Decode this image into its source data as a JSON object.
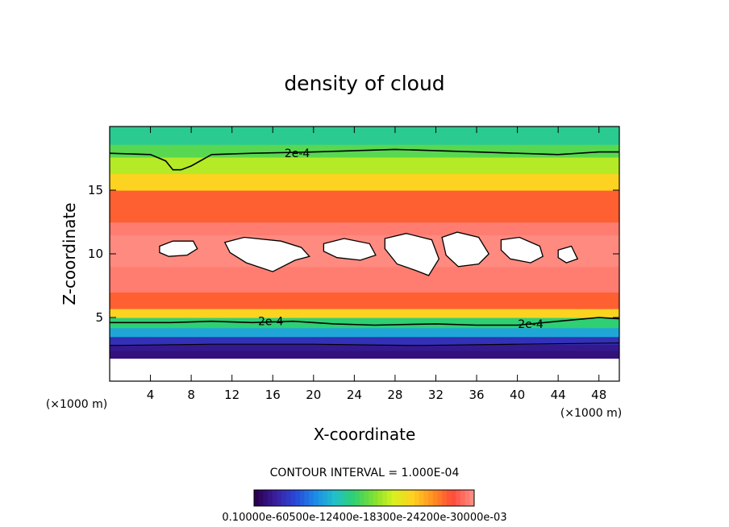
{
  "chart_data": {
    "type": "heatmap",
    "title": "density of cloud",
    "xlabel": "X-coordinate",
    "ylabel": "Z-coordinate",
    "x_unit_left": "(×1000 m)",
    "x_unit_right": "(×1000 m)",
    "xlim": [
      0,
      50
    ],
    "ylim": [
      0,
      20
    ],
    "xticks": [
      4,
      8,
      12,
      16,
      20,
      24,
      28,
      32,
      36,
      40,
      44,
      48
    ],
    "yticks": [
      5,
      10,
      15
    ],
    "contour_interval_text": "CONTOUR INTERVAL = 1.000E-04",
    "contour_label": "2e-4",
    "colorbar_text": "0.10000e-60500e-12400e-18300e-24200e-30000e-03",
    "colorbar_colors": [
      "#2a0050",
      "#3a1fa0",
      "#2848d8",
      "#1e8ae8",
      "#20c0c8",
      "#30d070",
      "#80e030",
      "#d8f020",
      "#ffd020",
      "#ff9020",
      "#ff4a3a",
      "#ff8a80"
    ],
    "layers": [
      {
        "zmin": 0.0,
        "zmax": 1.8,
        "level": "none"
      },
      {
        "zmin": 1.8,
        "zmax": 2.4,
        "level": 0.05
      },
      {
        "zmin": 2.4,
        "zmax": 2.9,
        "level": 0.07
      },
      {
        "zmin": 2.9,
        "zmax": 3.5,
        "level": 0.13
      },
      {
        "zmin": 3.5,
        "zmax": 4.2,
        "level": 0.32
      },
      {
        "zmin": 4.2,
        "zmax": 5.0,
        "level": 0.45
      },
      {
        "zmin": 5.0,
        "zmax": 5.7,
        "level": 0.72
      },
      {
        "zmin": 5.7,
        "zmax": 7.0,
        "level": 0.88
      },
      {
        "zmin": 7.0,
        "zmax": 9.0,
        "level": 0.98
      },
      {
        "zmin": 9.0,
        "zmax": 11.5,
        "level": 1.0
      },
      {
        "zmin": 11.5,
        "zmax": 12.5,
        "level": 0.98
      },
      {
        "zmin": 12.5,
        "zmax": 15.0,
        "level": 0.88
      },
      {
        "zmin": 15.0,
        "zmax": 16.3,
        "level": 0.72
      },
      {
        "zmin": 16.3,
        "zmax": 17.6,
        "level": 0.6
      },
      {
        "zmin": 17.6,
        "zmax": 18.6,
        "level": 0.5
      },
      {
        "zmin": 18.6,
        "zmax": 20.0,
        "level": 0.42
      }
    ],
    "contour_upper": [
      [
        0,
        17.9
      ],
      [
        4,
        17.8
      ],
      [
        5.5,
        17.3
      ],
      [
        6.2,
        16.6
      ],
      [
        7,
        16.6
      ],
      [
        8,
        16.9
      ],
      [
        10,
        17.8
      ],
      [
        14,
        17.9
      ],
      [
        20,
        18.0
      ],
      [
        28,
        18.2
      ],
      [
        36,
        18.0
      ],
      [
        40,
        17.9
      ],
      [
        44,
        17.8
      ],
      [
        48,
        18.0
      ],
      [
        50,
        18.0
      ]
    ],
    "contour_lower": [
      [
        0,
        4.6
      ],
      [
        6,
        4.6
      ],
      [
        10,
        4.7
      ],
      [
        14,
        4.6
      ],
      [
        18,
        4.7
      ],
      [
        22,
        4.5
      ],
      [
        26,
        4.4
      ],
      [
        32,
        4.5
      ],
      [
        36,
        4.4
      ],
      [
        40,
        4.4
      ],
      [
        44,
        4.7
      ],
      [
        48,
        5.0
      ],
      [
        50,
        4.9
      ]
    ],
    "contour_base": [
      [
        0,
        2.8
      ],
      [
        10,
        2.9
      ],
      [
        20,
        2.9
      ],
      [
        30,
        2.8
      ],
      [
        40,
        2.9
      ],
      [
        50,
        3.0
      ]
    ],
    "contour_label_positions": [
      [
        18.4,
        17.9
      ],
      [
        15.8,
        4.7
      ],
      [
        41.3,
        4.5
      ]
    ],
    "clear_patches": [
      [
        [
          4.9,
          10.6
        ],
        [
          6.2,
          11.0
        ],
        [
          8.2,
          11.0
        ],
        [
          8.6,
          10.4
        ],
        [
          7.6,
          9.9
        ],
        [
          5.8,
          9.8
        ],
        [
          4.9,
          10.1
        ]
      ],
      [
        [
          11.3,
          10.9
        ],
        [
          13.2,
          11.3
        ],
        [
          16.8,
          11.0
        ],
        [
          18.8,
          10.5
        ],
        [
          19.6,
          9.8
        ],
        [
          18.2,
          9.5
        ],
        [
          16.0,
          8.6
        ],
        [
          13.4,
          9.3
        ],
        [
          11.8,
          10.1
        ]
      ],
      [
        [
          21.0,
          10.8
        ],
        [
          23.0,
          11.2
        ],
        [
          25.5,
          10.8
        ],
        [
          26.1,
          9.9
        ],
        [
          24.6,
          9.5
        ],
        [
          22.3,
          9.7
        ],
        [
          21.0,
          10.2
        ]
      ],
      [
        [
          27.0,
          11.2
        ],
        [
          29.1,
          11.6
        ],
        [
          31.6,
          11.1
        ],
        [
          32.3,
          9.6
        ],
        [
          31.3,
          8.3
        ],
        [
          30.0,
          8.7
        ],
        [
          28.2,
          9.2
        ],
        [
          27.0,
          10.4
        ]
      ],
      [
        [
          32.6,
          11.3
        ],
        [
          34.1,
          11.7
        ],
        [
          36.2,
          11.3
        ],
        [
          37.2,
          10.0
        ],
        [
          36.2,
          9.2
        ],
        [
          34.2,
          9.0
        ],
        [
          33.0,
          9.9
        ]
      ],
      [
        [
          38.4,
          11.1
        ],
        [
          40.2,
          11.3
        ],
        [
          42.2,
          10.6
        ],
        [
          42.5,
          9.8
        ],
        [
          41.3,
          9.3
        ],
        [
          39.3,
          9.6
        ],
        [
          38.4,
          10.3
        ]
      ],
      [
        [
          44.0,
          10.3
        ],
        [
          45.3,
          10.6
        ],
        [
          45.9,
          9.6
        ],
        [
          44.8,
          9.3
        ],
        [
          44.0,
          9.7
        ]
      ]
    ]
  }
}
